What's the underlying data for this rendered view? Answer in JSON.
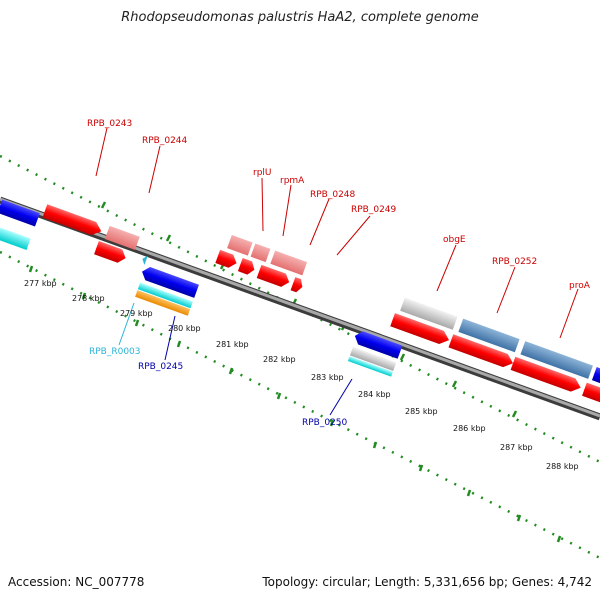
{
  "title": "Rhodopseudomonas palustris HaA2, complete genome",
  "footer": {
    "accession": "Accession: NC_007778",
    "summary": "Topology: circular; Length: 5,331,656 bp; Genes: 4,742"
  },
  "colors": {
    "backbone": "#7f7f7f",
    "ring": "#228b22",
    "forward_label": "#cc0000",
    "reverse_label": "#0000aa",
    "rna_label": "#2bb5d8"
  },
  "scale_labels": [
    "277 kbp",
    "278 kbp",
    "279 kbp",
    "280 kbp",
    "281 kbp",
    "282 kbp",
    "283 kbp",
    "284 kbp",
    "285 kbp",
    "286 kbp",
    "287 kbp",
    "288 kbp"
  ],
  "gene_labels": {
    "rpb0243": "RPB_0243",
    "rpb0244": "RPB_0244",
    "rplU": "rplU",
    "rpmA": "rpmA",
    "rpb0248": "RPB_0248",
    "rpb0249": "RPB_0249",
    "obgE": "obgE",
    "rpb0252": "RPB_0252",
    "proA": "proA",
    "rpbR0003": "RPB_R0003",
    "rpb0245": "RPB_0245",
    "rpb0250": "RPB_0250"
  }
}
